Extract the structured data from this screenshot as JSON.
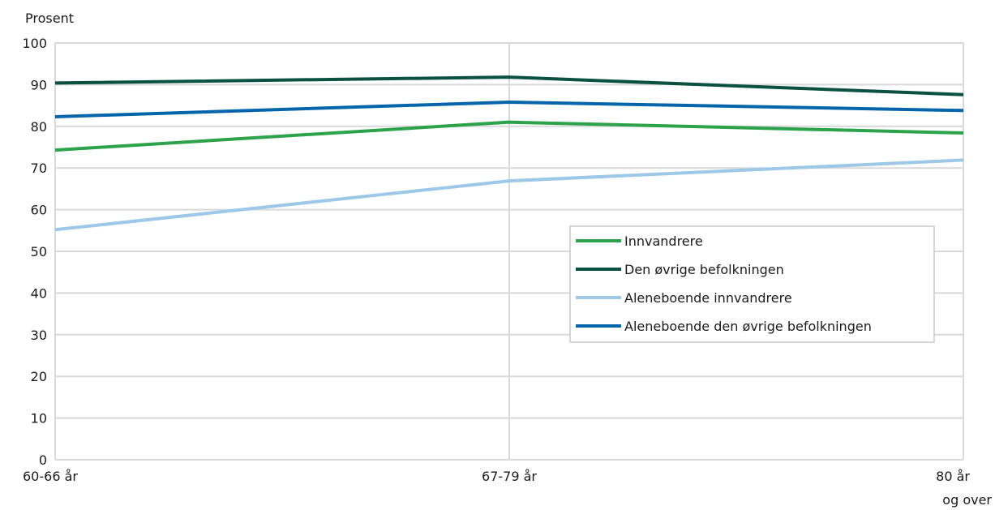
{
  "chart_data": {
    "type": "line",
    "ylabel": "Prosent",
    "ylim": [
      0,
      100
    ],
    "yticks": [
      0,
      10,
      20,
      30,
      40,
      50,
      60,
      70,
      80,
      90,
      100
    ],
    "categories": [
      [
        "60-66 år"
      ],
      [
        "67-79 år"
      ],
      [
        "80 år",
        "og over"
      ]
    ],
    "grid": true,
    "legend_position": "center-right",
    "series": [
      {
        "name": "Innvandrere",
        "color": "#2ca34a",
        "values": [
          74.3,
          81.0,
          78.4
        ]
      },
      {
        "name": "Den øvrige befolkningen",
        "color": "#0b5141",
        "values": [
          90.4,
          91.8,
          87.6
        ]
      },
      {
        "name": "Aleneboende innvandrere",
        "color": "#9dc8e8",
        "values": [
          55.2,
          66.9,
          71.9
        ]
      },
      {
        "name": "Aleneboende den øvrige befolkningen",
        "color": "#0565ab",
        "values": [
          82.3,
          85.8,
          83.8
        ]
      }
    ]
  }
}
